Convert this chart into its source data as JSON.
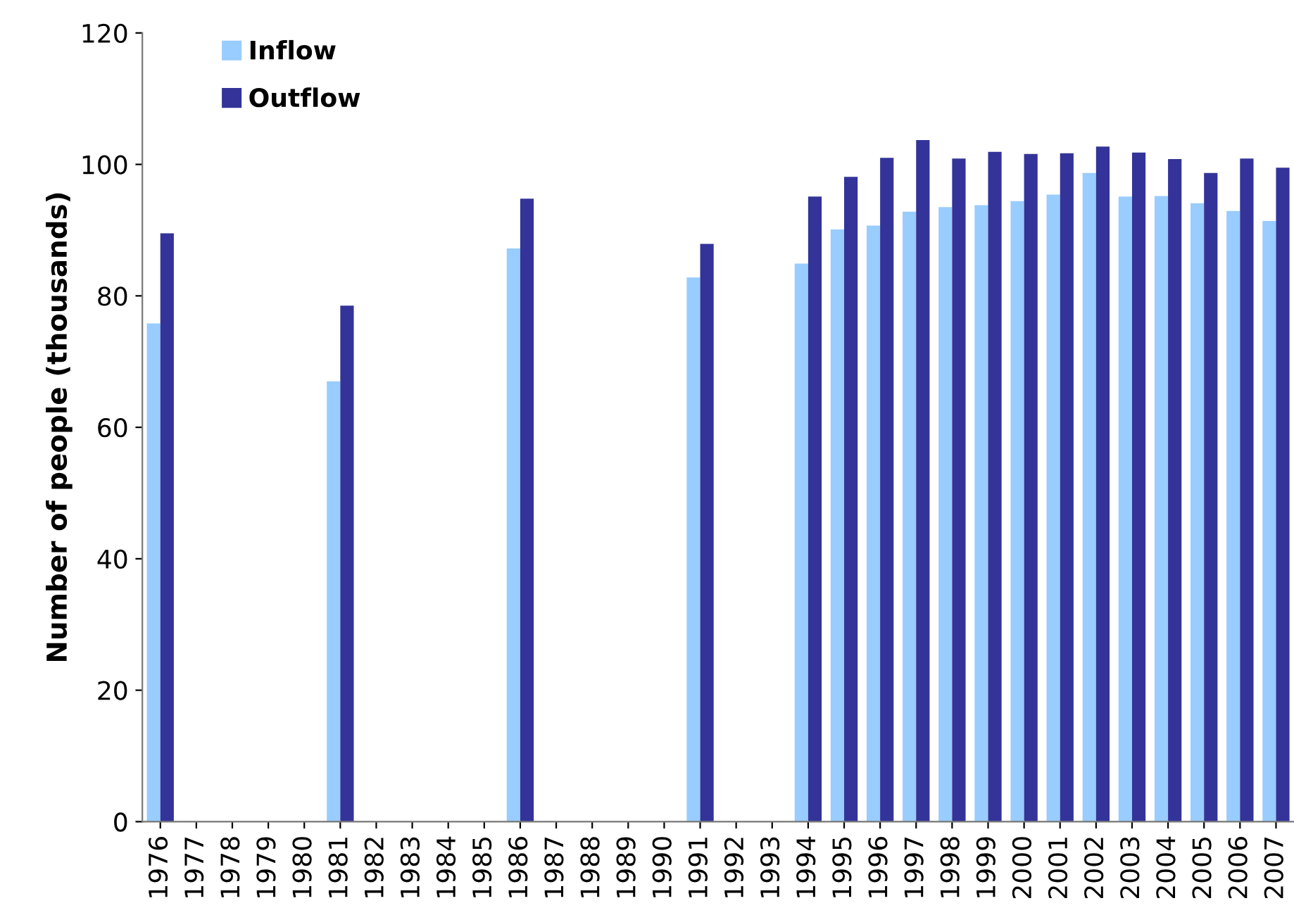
{
  "chart_data": {
    "type": "bar",
    "ylabel": "Number of people (thousands)",
    "categories": [
      "1976",
      "1977",
      "1978",
      "1979",
      "1980",
      "1981",
      "1982",
      "1983",
      "1984",
      "1985",
      "1986",
      "1987",
      "1988",
      "1989",
      "1990",
      "1991",
      "1992",
      "1993",
      "1994",
      "1995",
      "1996",
      "1997",
      "1998",
      "1999",
      "2000",
      "2001",
      "2002",
      "2003",
      "2004",
      "2005",
      "2006",
      "2007"
    ],
    "series": [
      {
        "name": "Inflow",
        "color": "#99ccff",
        "values": [
          75.8,
          null,
          null,
          null,
          null,
          67.0,
          null,
          null,
          null,
          null,
          87.2,
          null,
          null,
          null,
          null,
          82.8,
          null,
          null,
          84.9,
          90.1,
          90.7,
          92.8,
          93.5,
          93.8,
          94.4,
          95.4,
          98.7,
          95.1,
          95.2,
          94.1,
          92.9,
          91.4
        ]
      },
      {
        "name": "Outflow",
        "color": "#333399",
        "values": [
          89.5,
          null,
          null,
          null,
          null,
          78.5,
          null,
          null,
          null,
          null,
          94.8,
          null,
          null,
          null,
          null,
          87.9,
          null,
          null,
          95.1,
          98.1,
          101.0,
          103.7,
          100.9,
          101.9,
          101.6,
          101.7,
          102.7,
          101.8,
          100.8,
          98.7,
          100.9,
          99.5
        ]
      }
    ],
    "ylim": [
      0,
      120
    ],
    "yticks": [
      0,
      20,
      40,
      60,
      80,
      100,
      120
    ],
    "grid": false,
    "legend": "top left"
  }
}
